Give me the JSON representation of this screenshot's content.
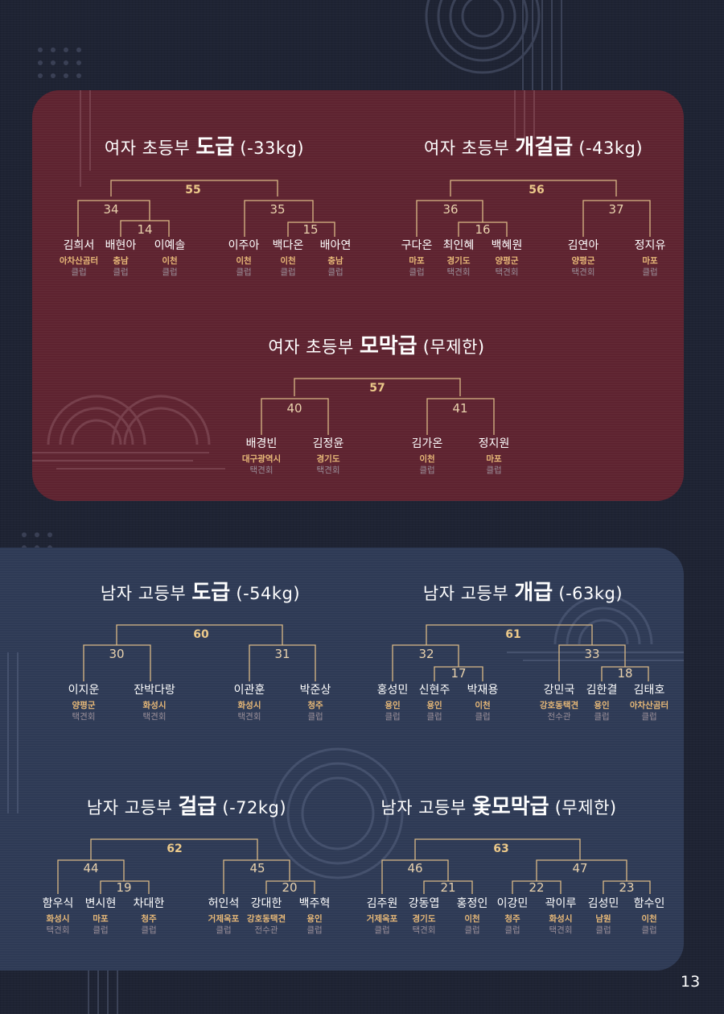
{
  "page_number": "13",
  "brackets": [
    {
      "id": "w-do",
      "title_prefix": "여자 초등부",
      "title_class": "도급",
      "title_suffix": "(-33kg)",
      "final_match": "55",
      "left_match": "34",
      "right_match": "35",
      "sub_matches": [
        "14",
        "15"
      ],
      "players": [
        {
          "name": "김희서",
          "region": "아차산곰터",
          "club": "클럽"
        },
        {
          "name": "배현아",
          "region": "충남",
          "club": "클럽"
        },
        {
          "name": "이예솔",
          "region": "이천",
          "club": "클럽"
        },
        {
          "name": "이주아",
          "region": "이천",
          "club": "클럽"
        },
        {
          "name": "백다온",
          "region": "이천",
          "club": "클럽"
        },
        {
          "name": "배아연",
          "region": "충남",
          "club": "클럽"
        }
      ]
    },
    {
      "id": "w-gaegeol",
      "title_prefix": "여자 초등부",
      "title_class": "개걸급",
      "title_suffix": "(-43kg)",
      "final_match": "56",
      "left_match": "36",
      "right_match": "37",
      "sub_matches": [
        "16"
      ],
      "players": [
        {
          "name": "구다온",
          "region": "마포",
          "club": "클럽"
        },
        {
          "name": "최인혜",
          "region": "경기도",
          "club": "택견회"
        },
        {
          "name": "백혜원",
          "region": "양평군",
          "club": "택견회"
        },
        {
          "name": "김연아",
          "region": "양평군",
          "club": "택견회"
        },
        {
          "name": "정지유",
          "region": "마포",
          "club": "클럽"
        }
      ]
    },
    {
      "id": "w-momak",
      "title_prefix": "여자 초등부",
      "title_class": "모막급",
      "title_suffix": "(무제한)",
      "final_match": "57",
      "left_match": "40",
      "right_match": "41",
      "sub_matches": [],
      "players": [
        {
          "name": "배경빈",
          "region": "대구광역시",
          "club": "택견회"
        },
        {
          "name": "김정윤",
          "region": "경기도",
          "club": "택견회"
        },
        {
          "name": "김가온",
          "region": "이천",
          "club": "클럽"
        },
        {
          "name": "정지원",
          "region": "마포",
          "club": "클럽"
        }
      ]
    },
    {
      "id": "m-do",
      "title_prefix": "남자 고등부",
      "title_class": "도급",
      "title_suffix": "(-54kg)",
      "final_match": "60",
      "left_match": "30",
      "right_match": "31",
      "sub_matches": [],
      "players": [
        {
          "name": "이지운",
          "region": "양평군",
          "club": "택견회"
        },
        {
          "name": "잔박다랑",
          "region": "화성시",
          "club": "택견회"
        },
        {
          "name": "이관훈",
          "region": "화성시",
          "club": "택견회"
        },
        {
          "name": "박준상",
          "region": "청주",
          "club": "클럽"
        }
      ]
    },
    {
      "id": "m-gae",
      "title_prefix": "남자 고등부",
      "title_class": "개급",
      "title_suffix": "(-63kg)",
      "final_match": "61",
      "left_match": "32",
      "right_match": "33",
      "sub_matches": [
        "17",
        "18"
      ],
      "players": [
        {
          "name": "홍성민",
          "region": "용인",
          "club": "클럽"
        },
        {
          "name": "신현주",
          "region": "용인",
          "club": "클럽"
        },
        {
          "name": "박재용",
          "region": "이천",
          "club": "클럽"
        },
        {
          "name": "강민국",
          "region": "강호동택견",
          "club": "전수관"
        },
        {
          "name": "김한결",
          "region": "용인",
          "club": "클럽"
        },
        {
          "name": "김태호",
          "region": "아차산곰터",
          "club": "클럽"
        }
      ]
    },
    {
      "id": "m-geol",
      "title_prefix": "남자 고등부",
      "title_class": "걸급",
      "title_suffix": "(-72kg)",
      "final_match": "62",
      "left_match": "44",
      "right_match": "45",
      "sub_matches": [
        "19",
        "20"
      ],
      "players": [
        {
          "name": "함우식",
          "region": "화성시",
          "club": "택견회"
        },
        {
          "name": "변시현",
          "region": "마포",
          "club": "클럽"
        },
        {
          "name": "차대한",
          "region": "청주",
          "club": "클럽"
        },
        {
          "name": "허인석",
          "region": "거제옥포",
          "club": "클럽"
        },
        {
          "name": "강대한",
          "region": "강호동택견",
          "club": "전수관"
        },
        {
          "name": "백주혁",
          "region": "용인",
          "club": "클럽"
        }
      ]
    },
    {
      "id": "m-otmomak",
      "title_prefix": "남자 고등부",
      "title_class": "옻모막급",
      "title_suffix": "(무제한)",
      "final_match": "63",
      "left_match": "46",
      "right_match": "47",
      "sub_matches": [
        "21",
        "22",
        "23"
      ],
      "players": [
        {
          "name": "김주원",
          "region": "거제옥포",
          "club": "클럽"
        },
        {
          "name": "강동엽",
          "region": "경기도",
          "club": "택견회"
        },
        {
          "name": "홍정인",
          "region": "이천",
          "club": "클럽"
        },
        {
          "name": "이강민",
          "region": "청주",
          "club": "클럽"
        },
        {
          "name": "곽이루",
          "region": "화성시",
          "club": "택견회"
        },
        {
          "name": "김성민",
          "region": "남원",
          "club": "클럽"
        },
        {
          "name": "함수인",
          "region": "이천",
          "club": "클럽"
        }
      ]
    }
  ]
}
